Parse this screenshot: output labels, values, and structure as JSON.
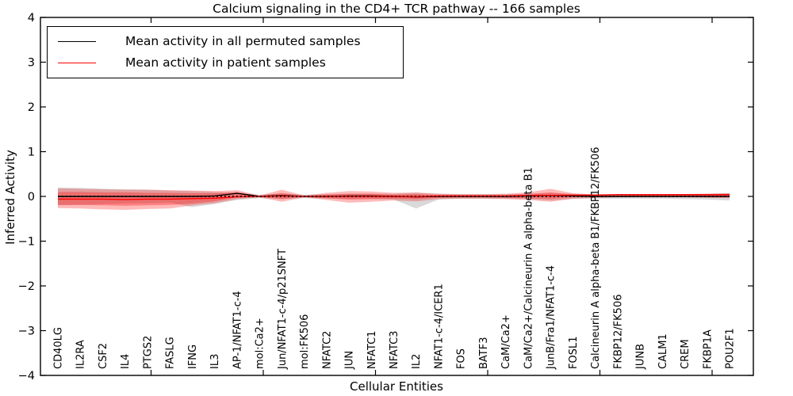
{
  "chart_data": {
    "type": "line",
    "title": "Calcium signaling in the CD4+ TCR pathway -- 166 samples",
    "xlabel": "Cellular Entities",
    "ylabel": "Inferred Activity",
    "ylim": [
      -4,
      4
    ],
    "yticks": [
      4,
      3,
      2,
      1,
      0,
      -1,
      -2,
      -3,
      -4
    ],
    "yticklabels": [
      "4",
      "3",
      "2",
      "1",
      "0",
      "−1",
      "−2",
      "−3",
      "−4"
    ],
    "grid": false,
    "legend": {
      "position": "upper left",
      "entries": [
        {
          "label": "Mean activity in all permuted samples",
          "color": "#000000"
        },
        {
          "label": "Mean activity in patient samples",
          "color": "#ff0000"
        }
      ]
    },
    "categories": [
      "CD40LG",
      "IL2RA",
      "CSF2",
      "IL4",
      "PTGS2",
      "FASLG",
      "IFNG",
      "IL3",
      "AP-1/NFAT1-c-4",
      "mol:Ca2+",
      "Jun/NFAT1-c-4/p21SNFT",
      "mol:FK506",
      "NFATC2",
      "JUN",
      "NFATC1",
      "NFATC3",
      "IL2",
      "NFAT1-c-4/ICER1",
      "FOS",
      "BATF3",
      "CaM/Ca2+",
      "CaM/Ca2+/Calcineurin A alpha-beta B1",
      "JunB/Fra1/NFAT1-c-4",
      "FOSL1",
      "Calcineurin A alpha-beta B1/FKBP12/FK506",
      "FKBP12/FK506",
      "JUNB",
      "CALM1",
      "CREM",
      "FKBP1A",
      "POU2F1"
    ],
    "series": [
      {
        "name": "Mean activity in all permuted samples",
        "color": "#000000",
        "style": "solid",
        "values": [
          0,
          0,
          0,
          0,
          0,
          0,
          0,
          0.01,
          0.07,
          0,
          0.02,
          0,
          0,
          0.01,
          0.01,
          0,
          -0.01,
          0,
          0,
          0,
          0,
          0.01,
          0.02,
          0.01,
          0,
          0,
          0,
          0,
          0,
          0,
          0
        ]
      },
      {
        "name": "Mean activity in patient samples",
        "color": "#ff0000",
        "style": "solid",
        "values": [
          -0.06,
          -0.06,
          -0.06,
          -0.07,
          -0.06,
          -0.06,
          -0.05,
          -0.04,
          -0.01,
          0,
          0.01,
          0,
          0,
          0,
          0,
          0,
          -0.01,
          0.01,
          0.01,
          0.01,
          0.01,
          0.02,
          0.02,
          0.03,
          0.03,
          0.04,
          0.04,
          0.04,
          0.04,
          0.04,
          0.04
        ]
      },
      {
        "name": "zero reference",
        "color": "#000000",
        "style": "dotted",
        "values": [
          0,
          0,
          0,
          0,
          0,
          0,
          0,
          0,
          0,
          0,
          0,
          0,
          0,
          0,
          0,
          0,
          0,
          0,
          0,
          0,
          0,
          0,
          0,
          0,
          0,
          0,
          0,
          0,
          0,
          0,
          0
        ]
      }
    ],
    "bands": [
      {
        "name": "permuted-std",
        "color": "#888888",
        "opacity": 0.32,
        "upper": [
          0.2,
          0.19,
          0.17,
          0.16,
          0.15,
          0.13,
          0.12,
          0.1,
          0.07,
          0.04,
          0.06,
          0.04,
          0.05,
          0.06,
          0.06,
          0.06,
          0.08,
          0.06,
          0.05,
          0.05,
          0.05,
          0.06,
          0.08,
          0.06,
          0.05,
          0.05,
          0.05,
          0.05,
          0.05,
          0.06,
          0.08
        ],
        "lower": [
          -0.2,
          -0.19,
          -0.17,
          -0.16,
          -0.15,
          -0.14,
          -0.24,
          -0.17,
          -0.08,
          -0.04,
          -0.06,
          -0.04,
          -0.05,
          -0.06,
          -0.06,
          -0.07,
          -0.27,
          -0.07,
          -0.05,
          -0.05,
          -0.05,
          -0.06,
          -0.09,
          -0.06,
          -0.05,
          -0.05,
          -0.05,
          -0.05,
          -0.06,
          -0.07,
          -0.09
        ]
      },
      {
        "name": "patient-outer",
        "color": "#ff0000",
        "opacity": 0.27,
        "upper": [
          0.18,
          0.17,
          0.16,
          0.15,
          0.15,
          0.14,
          0.13,
          0.12,
          0.14,
          0.02,
          0.15,
          0.02,
          0.08,
          0.12,
          0.11,
          0.08,
          0.09,
          0.06,
          0.05,
          0.05,
          0.06,
          0.09,
          0.17,
          0.07,
          0.04,
          0.04,
          0.05,
          0.05,
          0.05,
          0.06,
          0.07
        ],
        "lower": [
          -0.26,
          -0.27,
          -0.29,
          -0.3,
          -0.28,
          -0.27,
          -0.2,
          -0.15,
          -0.06,
          -0.02,
          -0.12,
          -0.02,
          -0.08,
          -0.14,
          -0.12,
          -0.09,
          -0.11,
          -0.06,
          -0.05,
          -0.05,
          -0.06,
          -0.08,
          -0.12,
          -0.05,
          -0.03,
          -0.02,
          -0.02,
          -0.02,
          -0.02,
          -0.03,
          -0.04
        ]
      },
      {
        "name": "patient-inner",
        "color": "#ff0000",
        "opacity": 0.3,
        "upper": [
          0.1,
          0.1,
          0.09,
          0.09,
          0.08,
          0.08,
          0.07,
          0.07,
          0.1,
          0.01,
          0.08,
          0.01,
          0.04,
          0.06,
          0.06,
          0.04,
          0.05,
          0.03,
          0.03,
          0.03,
          0.03,
          0.05,
          0.09,
          0.04,
          0.02,
          0.02,
          0.03,
          0.03,
          0.03,
          0.03,
          0.04
        ],
        "lower": [
          -0.19,
          -0.19,
          -0.2,
          -0.21,
          -0.2,
          -0.19,
          -0.16,
          -0.11,
          -0.02,
          -0.01,
          -0.06,
          -0.01,
          -0.04,
          -0.07,
          -0.06,
          -0.05,
          -0.06,
          -0.03,
          -0.02,
          -0.02,
          -0.03,
          -0.04,
          -0.06,
          -0.02,
          -0.01,
          -0.01,
          -0.01,
          -0.01,
          -0.01,
          -0.02,
          -0.02
        ]
      }
    ]
  }
}
